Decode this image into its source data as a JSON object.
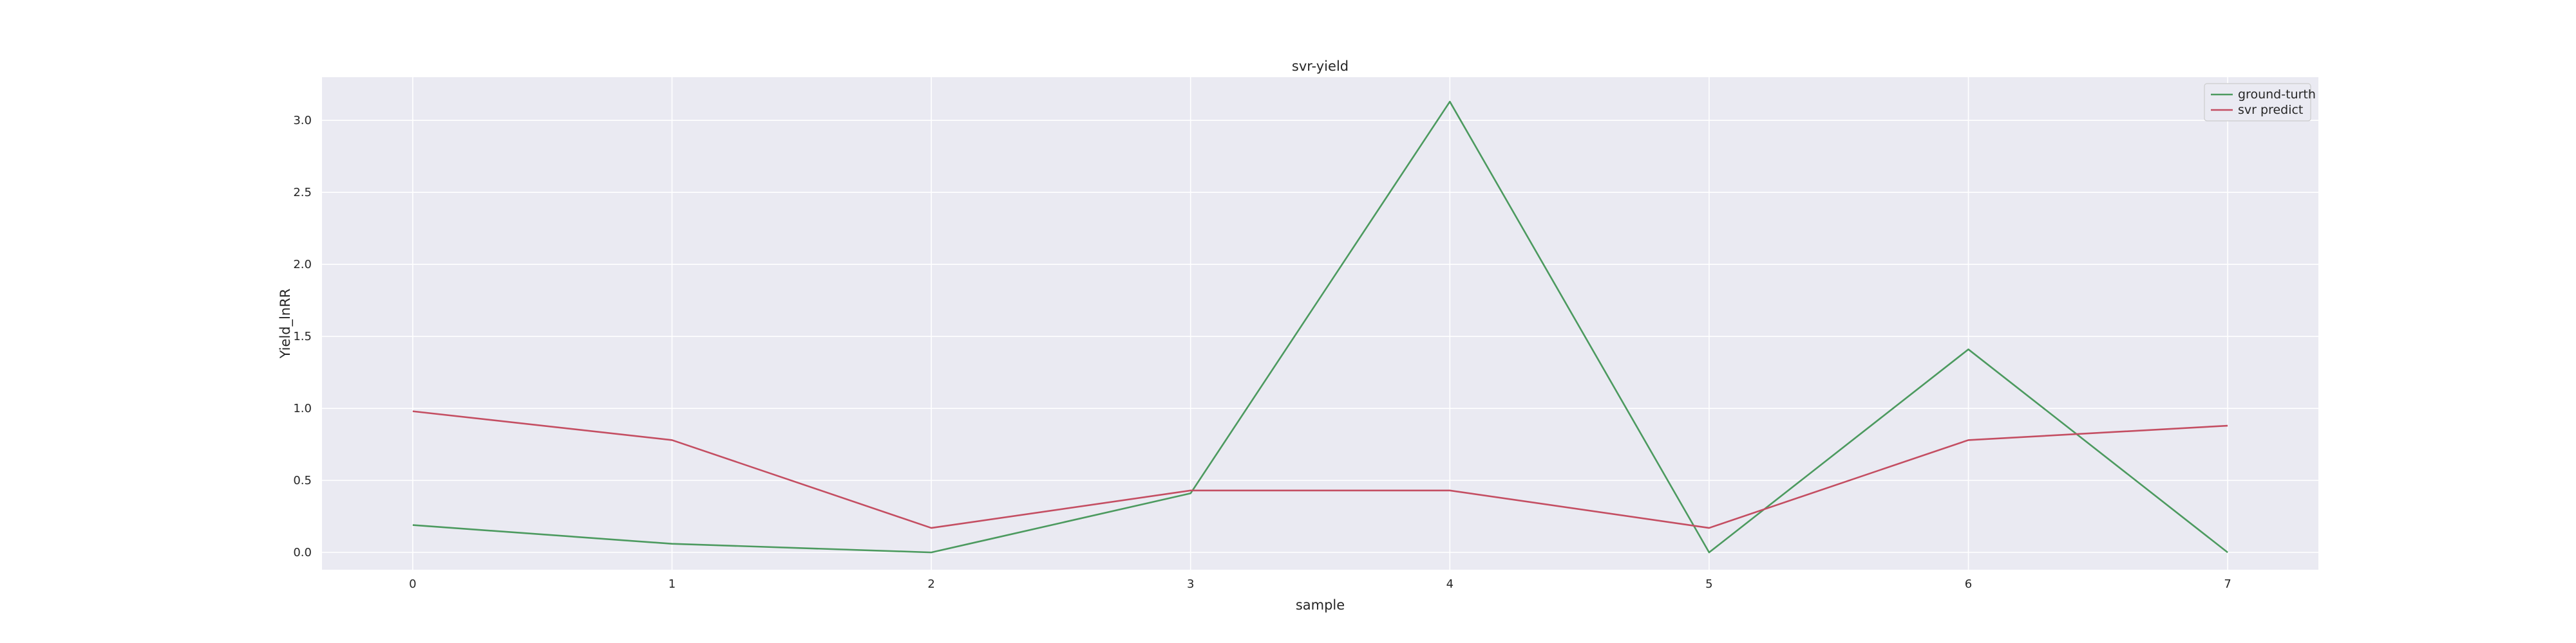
{
  "chart_data": {
    "type": "line",
    "title": "svr-yield",
    "xlabel": "sample",
    "ylabel": "Yield_lnRR",
    "x": [
      0,
      1,
      2,
      3,
      4,
      5,
      6,
      7
    ],
    "x_tick_labels": [
      "0",
      "1",
      "2",
      "3",
      "4",
      "5",
      "6",
      "7"
    ],
    "y_ticks": [
      0.0,
      0.5,
      1.0,
      1.5,
      2.0,
      2.5,
      3.0
    ],
    "y_tick_labels": [
      "0.0",
      "0.5",
      "1.0",
      "1.5",
      "2.0",
      "2.5",
      "3.0"
    ],
    "xlim": [
      -0.35,
      7.35
    ],
    "ylim": [
      -0.12,
      3.3
    ],
    "grid": true,
    "legend_position": "top-right",
    "series": [
      {
        "name": "ground-turth",
        "color": "#4c9a5f",
        "values": [
          0.19,
          0.06,
          0.0,
          0.41,
          3.13,
          0.0,
          1.41,
          0.0
        ]
      },
      {
        "name": "svr predict",
        "color": "#c44e62",
        "values": [
          0.98,
          0.78,
          0.17,
          0.43,
          0.43,
          0.17,
          0.78,
          0.88
        ]
      }
    ],
    "background_color": "#eaeaf2",
    "grid_color": "#ffffff"
  }
}
